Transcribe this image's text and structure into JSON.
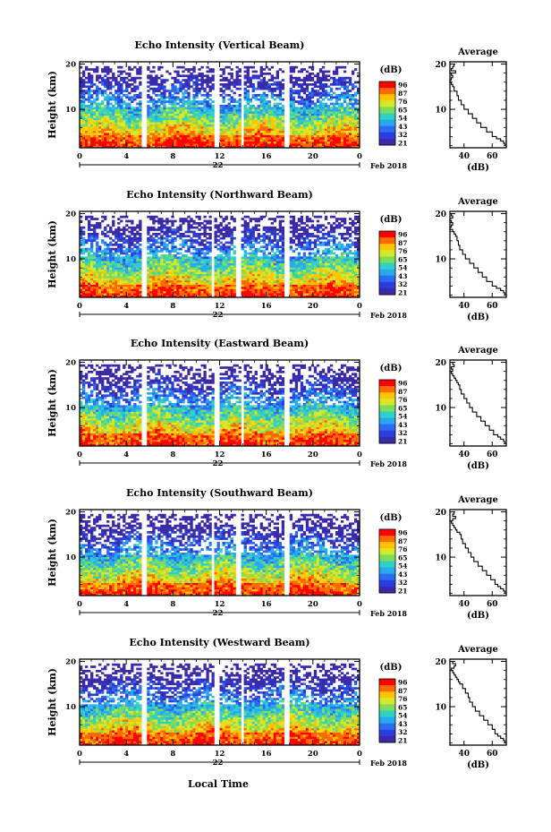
{
  "xlabel": "Local Time",
  "date_label": "Feb 2018",
  "day_label": "22",
  "units_label": "(dB)",
  "avg_title": "Average",
  "colorbar_ticks": [
    "96",
    "87",
    "76",
    "65",
    "54",
    "43",
    "32",
    "21"
  ],
  "colorbar_colors": [
    "#ff0000",
    "#ff6a00",
    "#ffc400",
    "#d7e82a",
    "#7ddc5a",
    "#2fd0c6",
    "#28a8f0",
    "#2b6cf0",
    "#2a3ee0",
    "#3a2aa8"
  ],
  "chart_data": [
    {
      "type": "heatmap",
      "title": "Echo Intensity (Vertical Beam)",
      "ylabel": "Height (km)",
      "x_ticks": [
        "0",
        "4",
        "8",
        "12",
        "16",
        "20",
        "0"
      ],
      "x_range": [
        0,
        24
      ],
      "y_ticks": [
        "10",
        "20"
      ],
      "y_range": [
        1.5,
        20.5
      ],
      "gaps": [
        [
          5.4,
          5.8
        ],
        [
          11.6,
          11.9
        ],
        [
          13.8,
          14.1
        ],
        [
          17.6,
          17.9
        ]
      ],
      "top_km": 19.5,
      "colorbar_ticks": [
        "96",
        "87",
        "76",
        "65",
        "54",
        "43",
        "32",
        "21"
      ],
      "avg_profile": {
        "xlabel": "(dB)",
        "x_ticks": [
          "40",
          "60"
        ],
        "x_range": [
          30,
          70
        ],
        "y_ticks": [
          "10",
          "20"
        ],
        "y_range": [
          1.5,
          20.5
        ],
        "heights": [
          20,
          19.5,
          19,
          18.5,
          18,
          17.5,
          17,
          16.5,
          16,
          15.5,
          15,
          14,
          13,
          12,
          11,
          10,
          9,
          8,
          7,
          6,
          5,
          4,
          3.5,
          3,
          2.5,
          2
        ],
        "values": [
          31,
          33,
          32,
          31,
          34,
          31,
          32,
          31,
          30,
          31,
          32,
          33,
          35,
          36,
          38,
          40,
          43,
          46,
          49,
          52,
          56,
          60,
          63,
          66,
          68,
          69
        ]
      }
    },
    {
      "type": "heatmap",
      "title": "Echo Intensity (Northward Beam)",
      "ylabel": "Height (km)",
      "x_ticks": [
        "0",
        "4",
        "8",
        "12",
        "16",
        "20",
        "0"
      ],
      "x_range": [
        0,
        24
      ],
      "y_ticks": [
        "10",
        "20"
      ],
      "y_range": [
        1.5,
        20.5
      ],
      "gaps": [
        [
          5.4,
          5.8
        ],
        [
          11.2,
          11.6
        ],
        [
          13.5,
          13.8
        ],
        [
          17.6,
          17.9
        ]
      ],
      "top_km": 19.5,
      "colorbar_ticks": [
        "96",
        "87",
        "76",
        "65",
        "54",
        "43",
        "32",
        "21"
      ],
      "avg_profile": {
        "xlabel": "(dB)",
        "x_ticks": [
          "40",
          "60"
        ],
        "x_range": [
          30,
          70
        ],
        "y_ticks": [
          "10",
          "20"
        ],
        "y_range": [
          1.5,
          20.5
        ],
        "heights": [
          20,
          19.5,
          19,
          18.5,
          18,
          17.5,
          17,
          16.5,
          16,
          15.5,
          15,
          14,
          13,
          12,
          11,
          10,
          9,
          8,
          7,
          6,
          5,
          4,
          3.5,
          3,
          2.5,
          2
        ],
        "values": [
          30,
          31,
          32,
          30,
          31,
          32,
          31,
          30,
          32,
          33,
          34,
          35,
          36,
          37,
          39,
          41,
          44,
          47,
          50,
          53,
          56,
          60,
          63,
          66,
          68,
          69
        ]
      }
    },
    {
      "type": "heatmap",
      "title": "Echo Intensity (Eastward Beam)",
      "ylabel": "Height (km)",
      "x_ticks": [
        "0",
        "4",
        "8",
        "12",
        "16",
        "20",
        "0"
      ],
      "x_range": [
        0,
        24
      ],
      "y_ticks": [
        "10",
        "20"
      ],
      "y_range": [
        1.5,
        20.5
      ],
      "gaps": [
        [
          5.4,
          5.8
        ],
        [
          11.6,
          11.9
        ],
        [
          13.8,
          14.1
        ],
        [
          17.6,
          17.9
        ]
      ],
      "top_km": 19.5,
      "colorbar_ticks": [
        "96",
        "87",
        "76",
        "65",
        "54",
        "43",
        "32",
        "21"
      ],
      "avg_profile": {
        "xlabel": "(dB)",
        "x_ticks": [
          "40",
          "60"
        ],
        "x_range": [
          30,
          70
        ],
        "y_ticks": [
          "10",
          "20"
        ],
        "y_range": [
          1.5,
          20.5
        ],
        "heights": [
          20,
          19.5,
          19,
          18.5,
          18,
          17.5,
          17,
          16.5,
          16,
          15.5,
          15,
          14,
          13,
          12,
          11,
          10,
          9,
          8,
          7,
          6,
          5,
          4,
          3.5,
          3,
          2.5,
          2
        ],
        "values": [
          31,
          32,
          33,
          31,
          32,
          31,
          32,
          33,
          34,
          35,
          36,
          37,
          38,
          40,
          42,
          44,
          46,
          49,
          52,
          55,
          58,
          61,
          64,
          66,
          68,
          69
        ]
      }
    },
    {
      "type": "heatmap",
      "title": "Echo Intensity (Southward Beam)",
      "ylabel": "Height (km)",
      "x_ticks": [
        "0",
        "4",
        "8",
        "12",
        "16",
        "20",
        "0"
      ],
      "x_range": [
        0,
        24
      ],
      "y_ticks": [
        "10",
        "20"
      ],
      "y_range": [
        1.5,
        20.5
      ],
      "gaps": [
        [
          5.4,
          5.8
        ],
        [
          11.2,
          11.6
        ],
        [
          13.5,
          13.8
        ],
        [
          17.6,
          17.9
        ]
      ],
      "top_km": 19.5,
      "colorbar_ticks": [
        "96",
        "87",
        "76",
        "65",
        "54",
        "43",
        "32",
        "21"
      ],
      "avg_profile": {
        "xlabel": "(dB)",
        "x_ticks": [
          "40",
          "60"
        ],
        "x_range": [
          30,
          70
        ],
        "y_ticks": [
          "10",
          "20"
        ],
        "y_range": [
          1.5,
          20.5
        ],
        "heights": [
          20,
          19.5,
          19,
          18.5,
          18,
          17.5,
          17,
          16.5,
          16,
          15.5,
          15,
          14,
          13,
          12,
          11,
          10,
          9,
          8,
          7,
          6,
          5,
          4,
          3.5,
          3,
          2.5,
          2
        ],
        "values": [
          31,
          33,
          32,
          34,
          32,
          31,
          32,
          33,
          34,
          35,
          37,
          38,
          39,
          41,
          43,
          45,
          47,
          50,
          53,
          56,
          59,
          62,
          64,
          66,
          68,
          69
        ]
      }
    },
    {
      "type": "heatmap",
      "title": "Echo Intensity (Westward Beam)",
      "ylabel": "Height (km)",
      "x_ticks": [
        "0",
        "4",
        "8",
        "12",
        "16",
        "20",
        "0"
      ],
      "x_range": [
        0,
        24
      ],
      "y_ticks": [
        "10",
        "20"
      ],
      "y_range": [
        1.5,
        20.5
      ],
      "gaps": [
        [
          5.4,
          5.8
        ],
        [
          11.6,
          11.9
        ],
        [
          13.8,
          14.1
        ],
        [
          17.6,
          17.9
        ]
      ],
      "top_km": 19.5,
      "colorbar_ticks": [
        "96",
        "87",
        "76",
        "65",
        "54",
        "43",
        "32",
        "21"
      ],
      "avg_profile": {
        "xlabel": "(dB)",
        "x_ticks": [
          "40",
          "60"
        ],
        "x_range": [
          30,
          70
        ],
        "y_ticks": [
          "10",
          "20"
        ],
        "y_range": [
          1.5,
          20.5
        ],
        "heights": [
          20,
          19.5,
          19,
          18.5,
          18,
          17.5,
          17,
          16.5,
          16,
          15.5,
          15,
          14,
          13,
          12,
          11,
          10,
          9,
          8,
          7,
          6,
          5,
          4,
          3.5,
          3,
          2.5,
          2
        ],
        "values": [
          31,
          32,
          34,
          33,
          31,
          32,
          33,
          34,
          35,
          36,
          37,
          39,
          41,
          43,
          44,
          46,
          48,
          51,
          54,
          57,
          60,
          62,
          64,
          66,
          68,
          69
        ]
      }
    }
  ]
}
